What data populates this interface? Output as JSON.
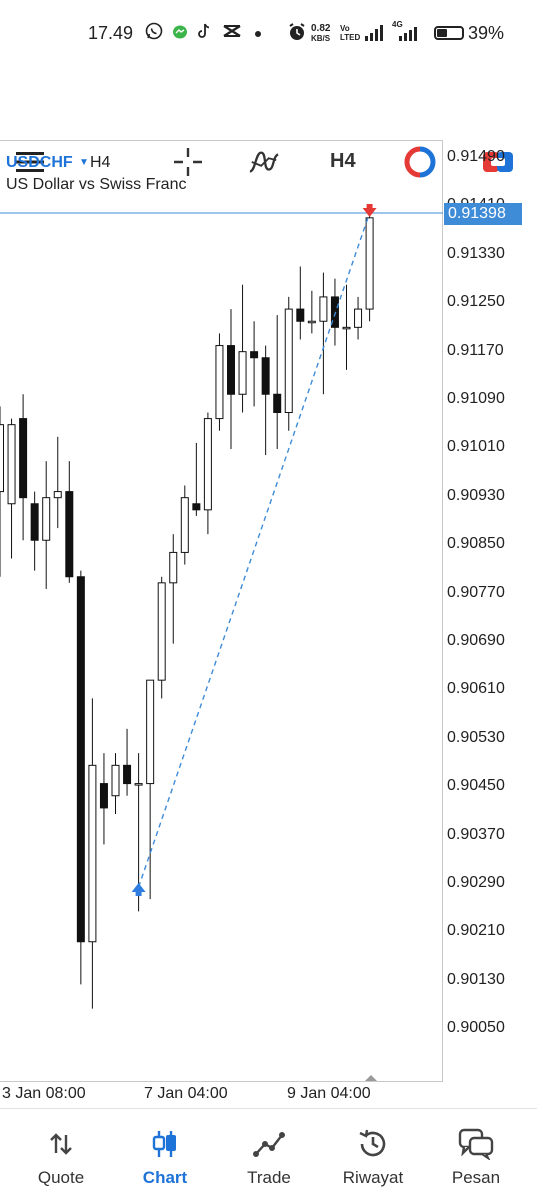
{
  "status_bar": {
    "time": "17.49",
    "net_speed": "0.82",
    "net_unit": "KB/S",
    "net_type": "4G",
    "volte": "Vo LTED",
    "battery": "39%",
    "icons": [
      "whatsapp-icon",
      "messenger-icon",
      "tiktok-icon",
      "capcut-icon",
      "dot-icon",
      "alarm-icon",
      "signal-icon",
      "signal-4g-icon",
      "battery-icon"
    ]
  },
  "toolbar": {
    "timeframe": "H4",
    "icons": [
      "menu-icon",
      "crosshair-icon",
      "indicators-icon",
      "timeframe-label",
      "objects-icon",
      "trade-toggle-icon"
    ]
  },
  "chart": {
    "symbol": "USDCHF",
    "timeframe": "H4",
    "description": "US Dollar vs Swiss Franc",
    "current_price": "0.91398",
    "price_labels": [
      "0.91490",
      "0.91410",
      "0.91330",
      "0.91250",
      "0.91170",
      "0.91090",
      "0.91010",
      "0.90930",
      "0.90850",
      "0.90770",
      "0.90690",
      "0.90610",
      "0.90530",
      "0.90450",
      "0.90370",
      "0.90290",
      "0.90210",
      "0.90130",
      "0.90050"
    ],
    "time_labels": [
      "3 Jan 08:00",
      "7 Jan 04:00",
      "9 Jan 04:00"
    ],
    "colors": {
      "accent": "#1e73d8",
      "price_line": "#3e8bd8",
      "buy_arrow": "#2f7de0",
      "sell_arrow": "#e53935"
    }
  },
  "chart_data": {
    "type": "candlestick",
    "symbol": "USDCHF",
    "timeframe": "H4",
    "ylim": [
      0.9001,
      0.9153
    ],
    "candles": [
      {
        "o": 0.9094,
        "h": 0.9108,
        "l": 0.908,
        "c": 0.9105
      },
      {
        "o": 0.9092,
        "h": 0.9106,
        "l": 0.9083,
        "c": 0.9105
      },
      {
        "o": 0.9106,
        "h": 0.911,
        "l": 0.9086,
        "c": 0.9093
      },
      {
        "o": 0.9092,
        "h": 0.9094,
        "l": 0.9081,
        "c": 0.9086
      },
      {
        "o": 0.9086,
        "h": 0.9099,
        "l": 0.9078,
        "c": 0.9093
      },
      {
        "o": 0.9093,
        "h": 0.9103,
        "l": 0.9088,
        "c": 0.9094
      },
      {
        "o": 0.9094,
        "h": 0.9099,
        "l": 0.9079,
        "c": 0.908
      },
      {
        "o": 0.908,
        "h": 0.9081,
        "l": 0.9013,
        "c": 0.902
      },
      {
        "o": 0.902,
        "h": 0.906,
        "l": 0.9009,
        "c": 0.9049
      },
      {
        "o": 0.9046,
        "h": 0.9051,
        "l": 0.9036,
        "c": 0.9042
      },
      {
        "o": 0.9044,
        "h": 0.9051,
        "l": 0.9041,
        "c": 0.9049
      },
      {
        "o": 0.9049,
        "h": 0.9055,
        "l": 0.9044,
        "c": 0.9046
      },
      {
        "o": 0.9046,
        "h": 0.9051,
        "l": 0.9025,
        "c": 0.9046
      },
      {
        "o": 0.9046,
        "h": 0.9063,
        "l": 0.9027,
        "c": 0.9063
      },
      {
        "o": 0.9063,
        "h": 0.908,
        "l": 0.906,
        "c": 0.9079
      },
      {
        "o": 0.9079,
        "h": 0.9087,
        "l": 0.9069,
        "c": 0.9084
      },
      {
        "o": 0.9084,
        "h": 0.9095,
        "l": 0.9082,
        "c": 0.9093
      },
      {
        "o": 0.9092,
        "h": 0.9102,
        "l": 0.909,
        "c": 0.9091
      },
      {
        "o": 0.9091,
        "h": 0.9107,
        "l": 0.9087,
        "c": 0.9106
      },
      {
        "o": 0.9106,
        "h": 0.912,
        "l": 0.9104,
        "c": 0.9118
      },
      {
        "o": 0.9118,
        "h": 0.9124,
        "l": 0.9101,
        "c": 0.911
      },
      {
        "o": 0.911,
        "h": 0.9128,
        "l": 0.9107,
        "c": 0.9117
      },
      {
        "o": 0.9117,
        "h": 0.9122,
        "l": 0.9108,
        "c": 0.9116
      },
      {
        "o": 0.9116,
        "h": 0.9118,
        "l": 0.91,
        "c": 0.911
      },
      {
        "o": 0.911,
        "h": 0.9123,
        "l": 0.9101,
        "c": 0.9107
      },
      {
        "o": 0.9107,
        "h": 0.9126,
        "l": 0.9104,
        "c": 0.9124
      },
      {
        "o": 0.9124,
        "h": 0.9131,
        "l": 0.9119,
        "c": 0.9122
      },
      {
        "o": 0.9122,
        "h": 0.9127,
        "l": 0.912,
        "c": 0.9122
      },
      {
        "o": 0.9122,
        "h": 0.913,
        "l": 0.911,
        "c": 0.9126
      },
      {
        "o": 0.9126,
        "h": 0.9129,
        "l": 0.9118,
        "c": 0.9121
      },
      {
        "o": 0.9121,
        "h": 0.9128,
        "l": 0.9114,
        "c": 0.9121
      },
      {
        "o": 0.9121,
        "h": 0.9126,
        "l": 0.9119,
        "c": 0.9124
      },
      {
        "o": 0.9124,
        "h": 0.914,
        "l": 0.9122,
        "c": 0.9139
      }
    ],
    "trendline": {
      "from_candle": 12,
      "from_price": 0.9029,
      "to_candle": 32,
      "to_price": 0.91398
    },
    "current_price": 0.91398,
    "grid": false
  },
  "bottom_nav": {
    "items": [
      {
        "label": "Quote",
        "icon": "quote-arrows-icon"
      },
      {
        "label": "Chart",
        "icon": "chart-candles-icon"
      },
      {
        "label": "Trade",
        "icon": "trade-line-icon"
      },
      {
        "label": "Riwayat",
        "icon": "history-icon"
      },
      {
        "label": "Pesan",
        "icon": "messages-icon"
      }
    ],
    "active": "Chart"
  }
}
